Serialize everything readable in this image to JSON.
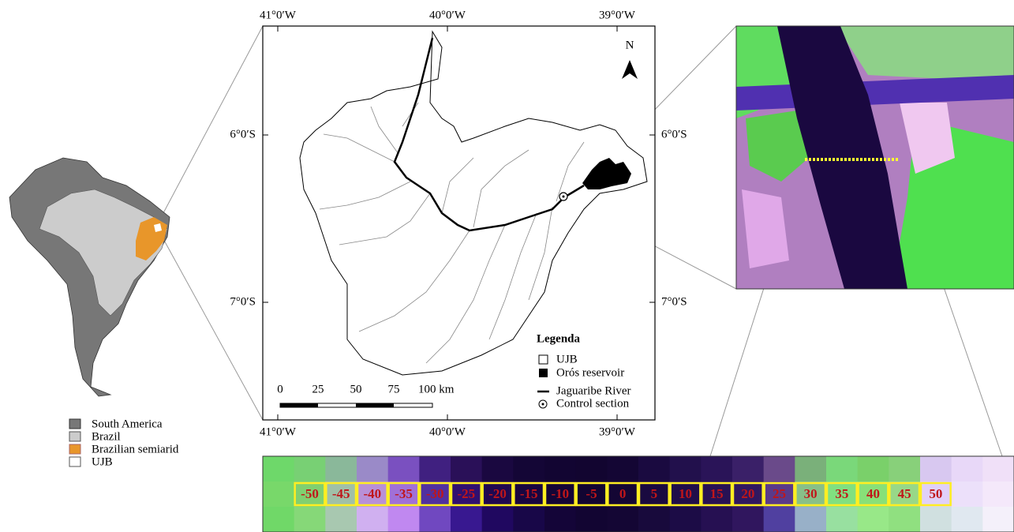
{
  "south_america_legend": [
    "South America",
    "Brazil",
    "Brazilian semiarid",
    "UJB"
  ],
  "map": {
    "longitude_labels": [
      "41°0′W",
      "40°0′W",
      "39°0′W"
    ],
    "latitude_labels": [
      "6°0′S",
      "7°0′S"
    ],
    "north": "N",
    "scale_labels": [
      "0",
      "25",
      "50",
      "75",
      "100 km"
    ],
    "legend": {
      "title": "Legenda",
      "items": [
        "UJB",
        "Orós reservoir",
        "Jaguaribe River",
        "Control section"
      ]
    }
  },
  "cross_section": {
    "labels": [
      -50,
      -45,
      -40,
      -35,
      -30,
      -25,
      -20,
      -15,
      -10,
      -5,
      0,
      5,
      10,
      15,
      20,
      25,
      30,
      35,
      40,
      45,
      50
    ]
  }
}
